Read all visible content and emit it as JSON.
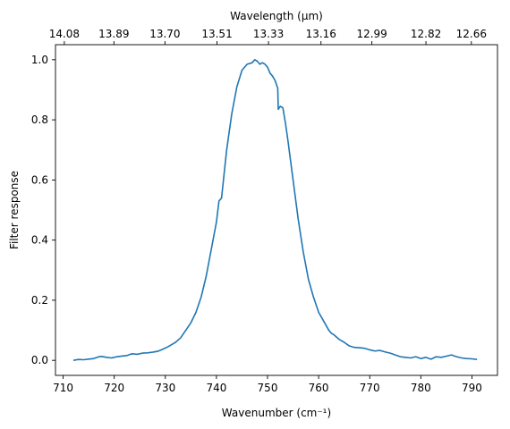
{
  "chart_data": {
    "type": "line",
    "title": "",
    "xlabel": "Wavenumber (cm⁻¹)",
    "ylabel": "Filter response",
    "x2label": "Wavelength (μm)",
    "xlim": [
      708.5,
      795.0
    ],
    "ylim": [
      -0.05,
      1.05
    ],
    "xticks": [
      710,
      720,
      730,
      740,
      750,
      760,
      770,
      780,
      790
    ],
    "xtick_labels": [
      "710",
      "720",
      "730",
      "740",
      "750",
      "760",
      "770",
      "780",
      "790"
    ],
    "yticks": [
      0.0,
      0.2,
      0.4,
      0.6,
      0.8,
      1.0
    ],
    "ytick_labels": [
      "0.0",
      "0.2",
      "0.4",
      "0.6",
      "0.8",
      "1.0"
    ],
    "x2ticks": [
      710.23,
      719.94,
      729.93,
      740.11,
      750.19,
      760.46,
      770.42,
      781.0,
      789.89
    ],
    "x2tick_labels": [
      "14.08",
      "13.89",
      "13.70",
      "13.51",
      "13.33",
      "13.16",
      "12.99",
      "12.82",
      "12.66"
    ],
    "grid": false,
    "line_color": "#1f77b4",
    "series": [
      {
        "x": [
          712.0,
          713.0,
          714.0,
          715.0,
          716.0,
          717.0,
          717.5,
          718.5,
          719.5,
          720.5,
          721.5,
          722.5,
          723.5,
          724.5,
          725.5,
          726.5,
          727.5,
          728.5,
          729.5,
          730.5,
          731.5,
          732.0,
          733.0,
          734.0,
          735.0,
          736.0,
          737.0,
          738.0,
          739.0,
          740.0,
          740.5,
          741.0,
          741.5,
          742.0,
          743.0,
          744.0,
          745.0,
          746.0,
          747.0,
          747.5,
          748.0,
          748.5,
          749.0,
          749.5,
          750.0,
          750.5,
          751.0,
          751.5,
          752.0,
          752.1,
          752.5,
          753.0,
          753.5,
          754.0,
          755.0,
          756.0,
          757.0,
          758.0,
          759.0,
          760.0,
          761.0,
          762.0,
          762.5,
          763.0,
          764.0,
          765.0,
          766.0,
          767.0,
          768.0,
          769.0,
          770.0,
          771.0,
          772.0,
          773.0,
          774.0,
          775.0,
          776.0,
          777.0,
          778.0,
          779.0,
          780.0,
          781.0,
          782.0,
          783.0,
          784.0,
          785.0,
          786.0,
          787.0,
          788.0,
          789.0,
          790.0,
          791.0
        ],
        "y": [
          0.0,
          0.003,
          0.002,
          0.004,
          0.006,
          0.012,
          0.013,
          0.01,
          0.008,
          0.012,
          0.014,
          0.016,
          0.022,
          0.02,
          0.024,
          0.025,
          0.027,
          0.03,
          0.037,
          0.045,
          0.055,
          0.06,
          0.075,
          0.1,
          0.125,
          0.16,
          0.21,
          0.28,
          0.37,
          0.46,
          0.53,
          0.54,
          0.62,
          0.7,
          0.82,
          0.91,
          0.965,
          0.985,
          0.99,
          1.0,
          0.995,
          0.985,
          0.99,
          0.985,
          0.975,
          0.955,
          0.945,
          0.93,
          0.905,
          0.835,
          0.845,
          0.84,
          0.79,
          0.73,
          0.6,
          0.47,
          0.36,
          0.27,
          0.21,
          0.16,
          0.13,
          0.1,
          0.09,
          0.085,
          0.07,
          0.06,
          0.048,
          0.043,
          0.042,
          0.04,
          0.035,
          0.031,
          0.033,
          0.028,
          0.024,
          0.018,
          0.012,
          0.01,
          0.008,
          0.012,
          0.006,
          0.01,
          0.004,
          0.012,
          0.01,
          0.014,
          0.018,
          0.012,
          0.008,
          0.006,
          0.005,
          0.003
        ]
      }
    ]
  }
}
